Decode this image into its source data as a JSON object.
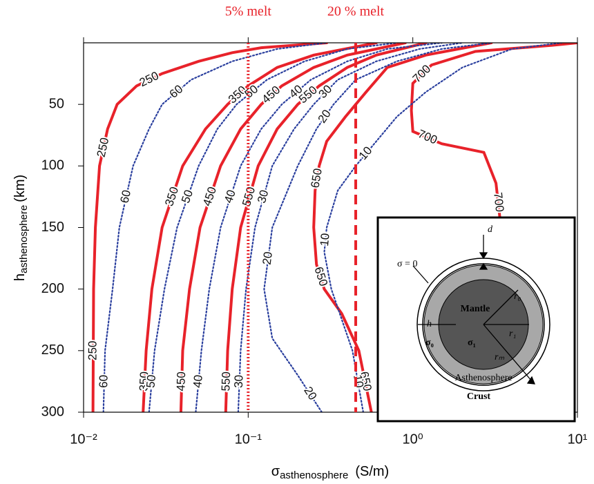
{
  "chart_data": {
    "type": "contour",
    "xlabel": {
      "main": "σ",
      "sub": "asthenosphere",
      "unit": "(S/m)"
    },
    "ylabel": {
      "main": "h",
      "sub": "asthenosphere",
      "unit": "(km)"
    },
    "xlog": true,
    "xlim": [
      0.01,
      10
    ],
    "xticks": [
      {
        "value": 0.01,
        "label": "10⁻²"
      },
      {
        "value": 0.1,
        "label": "10⁻¹"
      },
      {
        "value": 1,
        "label": "10⁰"
      },
      {
        "value": 10,
        "label": "10¹"
      }
    ],
    "ylim": [
      0,
      300
    ],
    "yinverted": true,
    "yticks": [
      50,
      100,
      150,
      200,
      250,
      300
    ],
    "vlines": [
      {
        "x": 0.1,
        "label": "5% melt",
        "style": "dotted",
        "color": "#e8222a"
      },
      {
        "x": 0.45,
        "label": "20 % melt",
        "style": "dashed",
        "color": "#e8222a"
      }
    ],
    "series": [
      {
        "name": "250",
        "color": "#e8222a",
        "style": "solid",
        "x": [
          0.0114,
          0.0115,
          0.0118,
          0.0125,
          0.014,
          0.016,
          0.021,
          0.03,
          0.05,
          0.08,
          0.12,
          0.3
        ],
        "values": [
          300,
          200,
          150,
          100,
          70,
          50,
          35,
          25,
          15,
          8,
          4,
          0
        ]
      },
      {
        "name": "350",
        "color": "#e8222a",
        "style": "solid",
        "x": [
          0.023,
          0.024,
          0.026,
          0.03,
          0.04,
          0.055,
          0.075,
          0.1,
          0.15,
          0.25,
          0.6
        ],
        "values": [
          300,
          250,
          200,
          150,
          100,
          70,
          50,
          35,
          20,
          10,
          0
        ]
      },
      {
        "name": "450",
        "color": "#e8222a",
        "style": "solid",
        "x": [
          0.039,
          0.04,
          0.044,
          0.051,
          0.068,
          0.09,
          0.12,
          0.16,
          0.25,
          0.4,
          0.9
        ],
        "values": [
          300,
          250,
          200,
          150,
          100,
          70,
          50,
          35,
          20,
          10,
          0
        ]
      },
      {
        "name": "550",
        "color": "#e8222a",
        "style": "solid",
        "x": [
          0.073,
          0.075,
          0.08,
          0.09,
          0.115,
          0.15,
          0.2,
          0.27,
          0.4,
          0.6,
          1.2
        ],
        "values": [
          300,
          250,
          200,
          150,
          100,
          70,
          50,
          35,
          20,
          10,
          0
        ]
      },
      {
        "name": "650",
        "color": "#e8222a",
        "style": "solid",
        "x": [
          0.56,
          0.47,
          0.37,
          0.29,
          0.26,
          0.25,
          0.255,
          0.27,
          0.3,
          0.39,
          0.52,
          0.7,
          1.2,
          3
        ],
        "values": [
          300,
          250,
          220,
          200,
          180,
          150,
          120,
          100,
          80,
          60,
          40,
          20,
          10,
          0
        ]
      },
      {
        "name": "700",
        "color": "#e8222a",
        "style": "solid",
        "x": [
          3.4,
          3.2,
          2.7,
          1.5,
          1.0,
          0.98,
          1.0,
          1.3,
          2.4,
          7,
          10
        ],
        "values": [
          145,
          114,
          89,
          82,
          72,
          55,
          33,
          18,
          7,
          2,
          0
        ]
      },
      {
        "name": "60",
        "color": "#2a3f9e",
        "style": "dotted",
        "x": [
          0.0132,
          0.0135,
          0.015,
          0.0165,
          0.02,
          0.025,
          0.03,
          0.045,
          0.08,
          0.15,
          0.3
        ],
        "values": [
          300,
          250,
          200,
          150,
          100,
          70,
          50,
          30,
          15,
          5,
          0
        ]
      },
      {
        "name": "50",
        "color": "#2a3f9e",
        "style": "dotted",
        "x": [
          0.025,
          0.027,
          0.031,
          0.037,
          0.05,
          0.065,
          0.085,
          0.13,
          0.22,
          0.4,
          0.8
        ],
        "values": [
          300,
          250,
          200,
          150,
          100,
          70,
          50,
          30,
          15,
          5,
          0
        ]
      },
      {
        "name": "40",
        "color": "#2a3f9e",
        "style": "dotted",
        "x": [
          0.048,
          0.052,
          0.058,
          0.068,
          0.09,
          0.12,
          0.16,
          0.24,
          0.4,
          0.7,
          1.5
        ],
        "values": [
          300,
          250,
          200,
          150,
          100,
          70,
          50,
          30,
          15,
          5,
          0
        ]
      },
      {
        "name": "30",
        "color": "#2a3f9e",
        "style": "dotted",
        "x": [
          0.087,
          0.09,
          0.097,
          0.11,
          0.14,
          0.19,
          0.25,
          0.35,
          0.6,
          1.1,
          2
        ],
        "values": [
          300,
          250,
          200,
          150,
          100,
          70,
          50,
          30,
          15,
          5,
          0
        ]
      },
      {
        "name": "20",
        "color": "#2a3f9e",
        "style": "dotted",
        "x": [
          0.28,
          0.2,
          0.14,
          0.125,
          0.14,
          0.2,
          0.26,
          0.33,
          0.45,
          0.8,
          1.5,
          3
        ],
        "values": [
          300,
          270,
          240,
          200,
          150,
          100,
          70,
          50,
          30,
          15,
          5,
          0
        ]
      },
      {
        "name": "10",
        "color": "#2a3f9e",
        "style": "dotted",
        "x": [
          0.5,
          0.43,
          0.32,
          0.29,
          0.3,
          0.35,
          0.45,
          0.6,
          0.8,
          1.2,
          2,
          4,
          8
        ],
        "values": [
          300,
          250,
          200,
          170,
          150,
          120,
          100,
          80,
          60,
          40,
          20,
          5,
          0
        ]
      }
    ]
  },
  "inset": {
    "d": "d",
    "sigma_zero": "σ = 0",
    "mantle": "Mantle",
    "r0": "r₀",
    "r1": "r₁",
    "rm": "rₘ",
    "h": "h",
    "sigma0": "σ₀",
    "sigma1": "σ₁",
    "asthenosphere": "Asthenosphere",
    "crust": "Crust"
  }
}
